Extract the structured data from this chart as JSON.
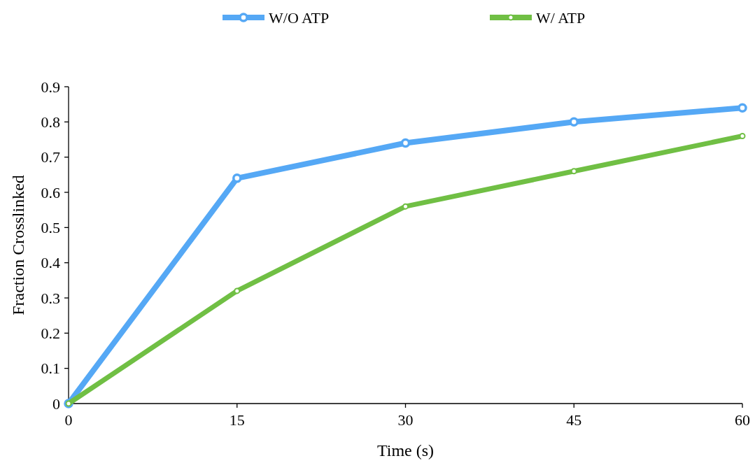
{
  "chart_data": {
    "type": "line",
    "xlabel": "Time (s)",
    "ylabel": "Fraction Crosslinked",
    "x": [
      0,
      15,
      30,
      45,
      60
    ],
    "series": [
      {
        "name": "W/O ATP",
        "color": "#55a8f5",
        "values": [
          0,
          0.64,
          0.74,
          0.8,
          0.84
        ]
      },
      {
        "name": "W/ ATP",
        "color": "#70bf44",
        "values": [
          0,
          0.32,
          0.56,
          0.66,
          0.76
        ]
      }
    ],
    "xlim": [
      0,
      60
    ],
    "xticks": [
      0,
      15,
      30,
      45,
      60
    ],
    "ylim": [
      0,
      0.9
    ],
    "yticks": [
      0,
      {
        "value": 0.1,
        "label": "0.1"
      },
      {
        "value": 0.2,
        "label": "0.2"
      },
      {
        "value": 0.3,
        "label": "0.3"
      },
      {
        "value": 0.4,
        "label": "0.4"
      },
      {
        "value": 0.5,
        "label": "0.5"
      },
      {
        "value": 0.6,
        "label": "0.6"
      },
      {
        "value": 0.7,
        "label": "0.7"
      },
      {
        "value": 0.8,
        "label": "0.8"
      },
      {
        "value": 0.9,
        "label": "0.9"
      }
    ],
    "grid": false,
    "legend": "top",
    "marker": "circle",
    "line_style": "solid"
  }
}
